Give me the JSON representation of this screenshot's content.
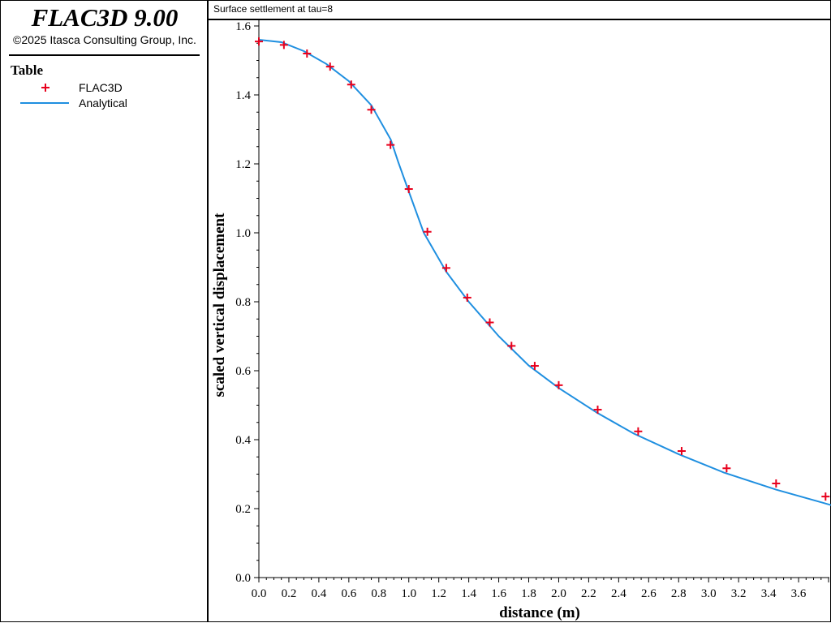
{
  "app": {
    "title": "FLAC3D 9.00",
    "copyright": "©2025 Itasca Consulting Group, Inc."
  },
  "legend": {
    "heading": "Table",
    "items": [
      {
        "label": "FLAC3D",
        "symbol": "plus",
        "color": "#e8001c"
      },
      {
        "label": "Analytical",
        "symbol": "line",
        "color": "#1f8fe0"
      }
    ]
  },
  "chart_data": {
    "type": "line",
    "title": "Surface settlement at tau=8",
    "xlabel": "distance (m)",
    "ylabel": "scaled vertical displacement",
    "xlim": [
      0.0,
      3.8
    ],
    "ylim": [
      0.0,
      1.6
    ],
    "xticks": [
      "0.0",
      "0.2",
      "0.4",
      "0.6",
      "0.8",
      "1.0",
      "1.2",
      "1.4",
      "1.6",
      "1.8",
      "2.0",
      "2.2",
      "2.4",
      "2.6",
      "2.8",
      "3.0",
      "3.2",
      "3.4",
      "3.6"
    ],
    "xtick_values": [
      0.0,
      0.2,
      0.4,
      0.6,
      0.8,
      1.0,
      1.2,
      1.4,
      1.6,
      1.8,
      2.0,
      2.2,
      2.4,
      2.6,
      2.8,
      3.0,
      3.2,
      3.4,
      3.6
    ],
    "yticks": [
      "0.0",
      "0.2",
      "0.4",
      "0.6",
      "0.8",
      "1.0",
      "1.2",
      "1.4",
      "1.6"
    ],
    "ytick_values": [
      0.0,
      0.2,
      0.4,
      0.6,
      0.8,
      1.0,
      1.2,
      1.4,
      1.6
    ],
    "grid": false,
    "series": [
      {
        "name": "FLAC3D",
        "style": "markers",
        "color": "#e8001c",
        "points": [
          [
            0.0,
            1.555
          ],
          [
            0.167,
            1.545
          ],
          [
            0.321,
            1.52
          ],
          [
            0.475,
            1.482
          ],
          [
            0.616,
            1.43
          ],
          [
            0.75,
            1.357
          ],
          [
            0.878,
            1.255
          ],
          [
            1.0,
            1.127
          ],
          [
            1.124,
            1.003
          ],
          [
            1.25,
            0.898
          ],
          [
            1.39,
            0.812
          ],
          [
            1.54,
            0.74
          ],
          [
            1.685,
            0.672
          ],
          [
            1.84,
            0.614
          ],
          [
            2.0,
            0.558
          ],
          [
            2.26,
            0.487
          ],
          [
            2.53,
            0.424
          ],
          [
            2.82,
            0.367
          ],
          [
            3.12,
            0.317
          ],
          [
            3.45,
            0.273
          ],
          [
            3.78,
            0.235
          ]
        ]
      },
      {
        "name": "Analytical",
        "style": "line",
        "color": "#1f8fe0",
        "points": [
          [
            0.0,
            1.56
          ],
          [
            0.15,
            1.553
          ],
          [
            0.3,
            1.527
          ],
          [
            0.45,
            1.49
          ],
          [
            0.6,
            1.44
          ],
          [
            0.75,
            1.37
          ],
          [
            0.88,
            1.27
          ],
          [
            0.93,
            1.205
          ],
          [
            1.0,
            1.12
          ],
          [
            1.1,
            1.0
          ],
          [
            1.12,
            0.985
          ],
          [
            1.25,
            0.887
          ],
          [
            1.4,
            0.8
          ],
          [
            1.6,
            0.7
          ],
          [
            1.8,
            0.615
          ],
          [
            2.0,
            0.55
          ],
          [
            2.26,
            0.477
          ],
          [
            2.5,
            0.418
          ],
          [
            2.8,
            0.358
          ],
          [
            3.1,
            0.305
          ],
          [
            3.45,
            0.255
          ],
          [
            3.82,
            0.21
          ]
        ]
      }
    ]
  }
}
